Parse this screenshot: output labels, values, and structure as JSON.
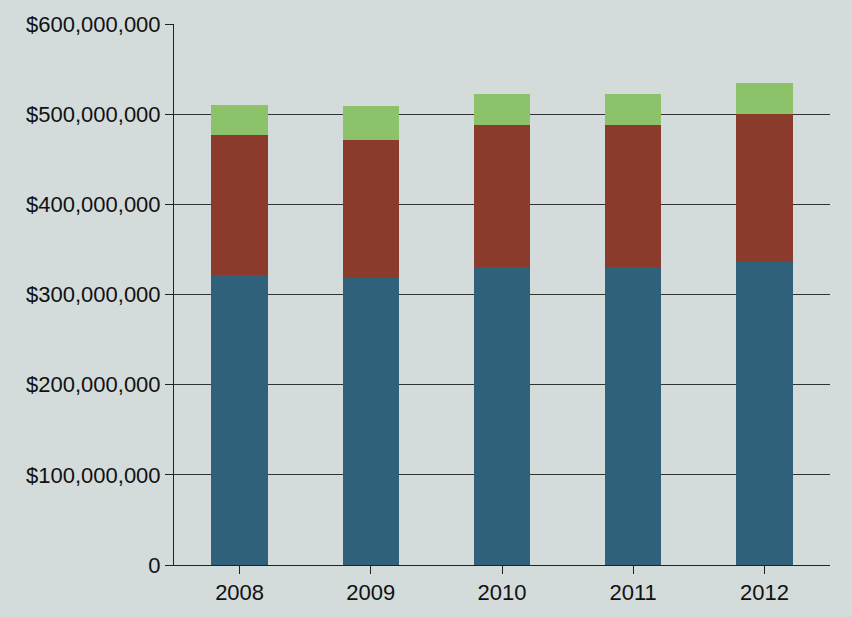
{
  "chart_data": {
    "type": "bar",
    "stacked": true,
    "categories": [
      "2008",
      "2009",
      "2010",
      "2011",
      "2012"
    ],
    "series": [
      {
        "color": "#2f617a",
        "values": [
          322000000,
          318000000,
          331000000,
          330000000,
          336000000
        ]
      },
      {
        "color": "#8a3b2b",
        "values": [
          155000000,
          153000000,
          157000000,
          158000000,
          164000000
        ]
      },
      {
        "color": "#8cc26a",
        "values": [
          33000000,
          38000000,
          34000000,
          34000000,
          35000000
        ]
      }
    ],
    "ylim": [
      0,
      600000000
    ],
    "yticks": [
      0,
      {
        "value": 100000000,
        "label": "$100,000,000"
      },
      {
        "value": 200000000,
        "label": "$200,000,000"
      },
      {
        "value": 300000000,
        "label": "$300,000,000"
      },
      {
        "value": 400000000,
        "label": "$400,000,000"
      },
      {
        "value": 500000000,
        "label": "$500,000,000"
      },
      {
        "value": 600000000,
        "label": "$600,000,000"
      }
    ],
    "grid": true
  }
}
